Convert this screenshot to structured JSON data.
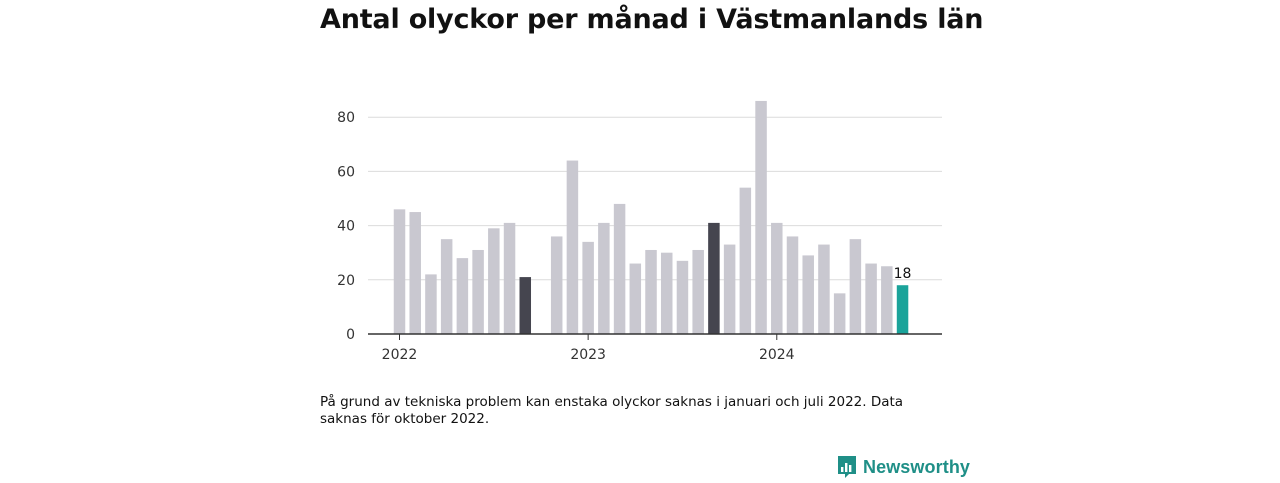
{
  "title": "Antal olyckor per månad i Västmanlands län",
  "note": "På grund av tekniska problem kan enstaka olyckor saknas i januari och juli 2022. Data saknas för oktober 2022.",
  "brand": {
    "name": "Newsworthy",
    "icon": "newsworthy-logo-icon",
    "color": "#1f8f87"
  },
  "chart_data": {
    "type": "bar",
    "x_start": "2022-01",
    "x": [
      "2022-01",
      "2022-02",
      "2022-03",
      "2022-04",
      "2022-05",
      "2022-06",
      "2022-07",
      "2022-08",
      "2022-09",
      "2022-10",
      "2022-11",
      "2022-12",
      "2023-01",
      "2023-02",
      "2023-03",
      "2023-04",
      "2023-05",
      "2023-06",
      "2023-07",
      "2023-08",
      "2023-09",
      "2023-10",
      "2023-11",
      "2023-12",
      "2024-01",
      "2024-02",
      "2024-03",
      "2024-04",
      "2024-05",
      "2024-06",
      "2024-07",
      "2024-08",
      "2024-09"
    ],
    "values": [
      46,
      45,
      22,
      35,
      28,
      31,
      39,
      41,
      21,
      null,
      36,
      64,
      34,
      41,
      48,
      26,
      31,
      30,
      27,
      31,
      41,
      33,
      54,
      86,
      41,
      36,
      29,
      33,
      15,
      35,
      26,
      25,
      18
    ],
    "highlight": {
      "2022-09": "#45454f",
      "2023-09": "#45454f",
      "2024-09": "#1aa39a"
    },
    "default_color": "#c9c8d0",
    "labels": [
      {
        "x": "2024-09",
        "text": "18"
      }
    ],
    "x_ticks": [
      {
        "x": "2022-01",
        "label": "2022"
      },
      {
        "x": "2023-01",
        "label": "2023"
      },
      {
        "x": "2024-01",
        "label": "2024"
      }
    ],
    "y_ticks": [
      0,
      20,
      40,
      60,
      80
    ],
    "ylim": [
      0,
      90
    ],
    "grid": true,
    "xlabel": "",
    "ylabel": ""
  }
}
